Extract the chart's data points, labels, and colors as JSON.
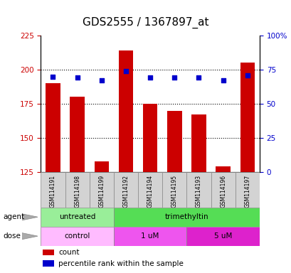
{
  "title": "GDS2555 / 1367897_at",
  "samples": [
    "GSM114191",
    "GSM114198",
    "GSM114199",
    "GSM114192",
    "GSM114194",
    "GSM114195",
    "GSM114193",
    "GSM114196",
    "GSM114197"
  ],
  "count_values": [
    190,
    180,
    133,
    214,
    175,
    170,
    167,
    129,
    205
  ],
  "percentile_values": [
    70,
    69,
    67,
    74,
    69,
    69,
    69,
    67,
    71
  ],
  "ylim_left": [
    125,
    225
  ],
  "ylim_right": [
    0,
    100
  ],
  "yticks_left": [
    125,
    150,
    175,
    200,
    225
  ],
  "yticks_right": [
    0,
    25,
    50,
    75,
    100
  ],
  "ytick_labels_right": [
    "0",
    "25",
    "50",
    "75",
    "100%"
  ],
  "agent_groups": [
    {
      "label": "untreated",
      "span": [
        0,
        3
      ],
      "color": "#99ee99"
    },
    {
      "label": "trimethyltin",
      "span": [
        3,
        9
      ],
      "color": "#55dd55"
    }
  ],
  "dose_groups": [
    {
      "label": "control",
      "span": [
        0,
        3
      ],
      "color": "#ffbbff"
    },
    {
      "label": "1 uM",
      "span": [
        3,
        6
      ],
      "color": "#ee55ee"
    },
    {
      "label": "5 uM",
      "span": [
        6,
        9
      ],
      "color": "#dd22cc"
    }
  ],
  "bar_color": "#cc0000",
  "dot_color": "#0000cc",
  "background_color": "#ffffff",
  "title_fontsize": 11,
  "axis_label_color_left": "#cc0000",
  "axis_label_color_right": "#0000cc",
  "gridlines_at": [
    200,
    175,
    150
  ],
  "bar_width": 0.6
}
